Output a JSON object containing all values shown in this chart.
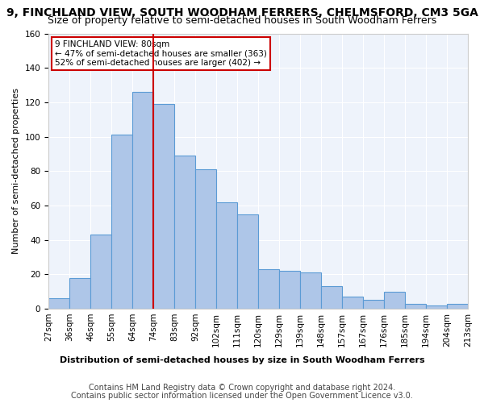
{
  "title": "9, FINCHLAND VIEW, SOUTH WOODHAM FERRERS, CHELMSFORD, CM3 5GA",
  "subtitle": "Size of property relative to semi-detached houses in South Woodham Ferrers",
  "xlabel": "Distribution of semi-detached houses by size in South Woodham Ferrers",
  "ylabel": "Number of semi-detached properties",
  "bin_labels": [
    "27sqm",
    "36sqm",
    "46sqm",
    "55sqm",
    "64sqm",
    "74sqm",
    "83sqm",
    "92sqm",
    "102sqm",
    "111sqm",
    "120sqm",
    "129sqm",
    "139sqm",
    "148sqm",
    "157sqm",
    "167sqm",
    "176sqm",
    "185sqm",
    "194sqm",
    "204sqm",
    "213sqm"
  ],
  "bar_heights": [
    6,
    18,
    43,
    101,
    126,
    119,
    89,
    81,
    62,
    55,
    23,
    22,
    21,
    13,
    7,
    5,
    10,
    3,
    2,
    3
  ],
  "bar_color": "#aec6e8",
  "bar_edge_color": "#5b9bd5",
  "vline_color": "#cc0000",
  "annotation_text": "9 FINCHLAND VIEW: 80sqm\n← 47% of semi-detached houses are smaller (363)\n52% of semi-detached houses are larger (402) →",
  "annotation_box_color": "#ffffff",
  "annotation_box_edge": "#cc0000",
  "footer1": "Contains HM Land Registry data © Crown copyright and database right 2024.",
  "footer2": "Contains public sector information licensed under the Open Government Licence v3.0.",
  "ylim": [
    0,
    160
  ],
  "yticks": [
    0,
    20,
    40,
    60,
    80,
    100,
    120,
    140,
    160
  ],
  "background_color": "#eef3fb",
  "grid_color": "#ffffff",
  "title_fontsize": 10,
  "subtitle_fontsize": 9,
  "axis_label_fontsize": 8,
  "tick_fontsize": 7.5,
  "footer_fontsize": 7
}
